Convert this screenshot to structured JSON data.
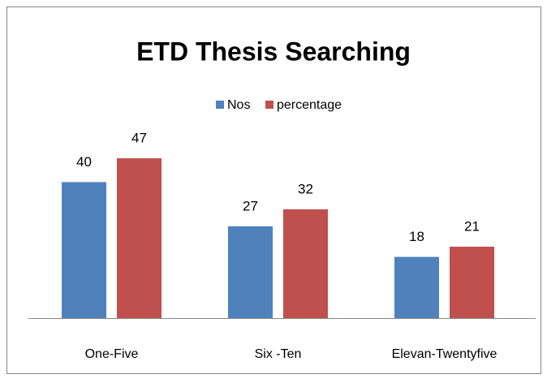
{
  "chart_data": {
    "type": "bar",
    "title": "ETD Thesis Searching",
    "categories": [
      "One-Five",
      "Six -Ten",
      "Elevan-Twentyfive"
    ],
    "series": [
      {
        "name": "Nos",
        "color": "#4f81bd",
        "values": [
          40,
          27,
          18
        ]
      },
      {
        "name": "percentage",
        "color": "#c0504d",
        "values": [
          47,
          32,
          21
        ]
      }
    ],
    "legend": "top"
  }
}
